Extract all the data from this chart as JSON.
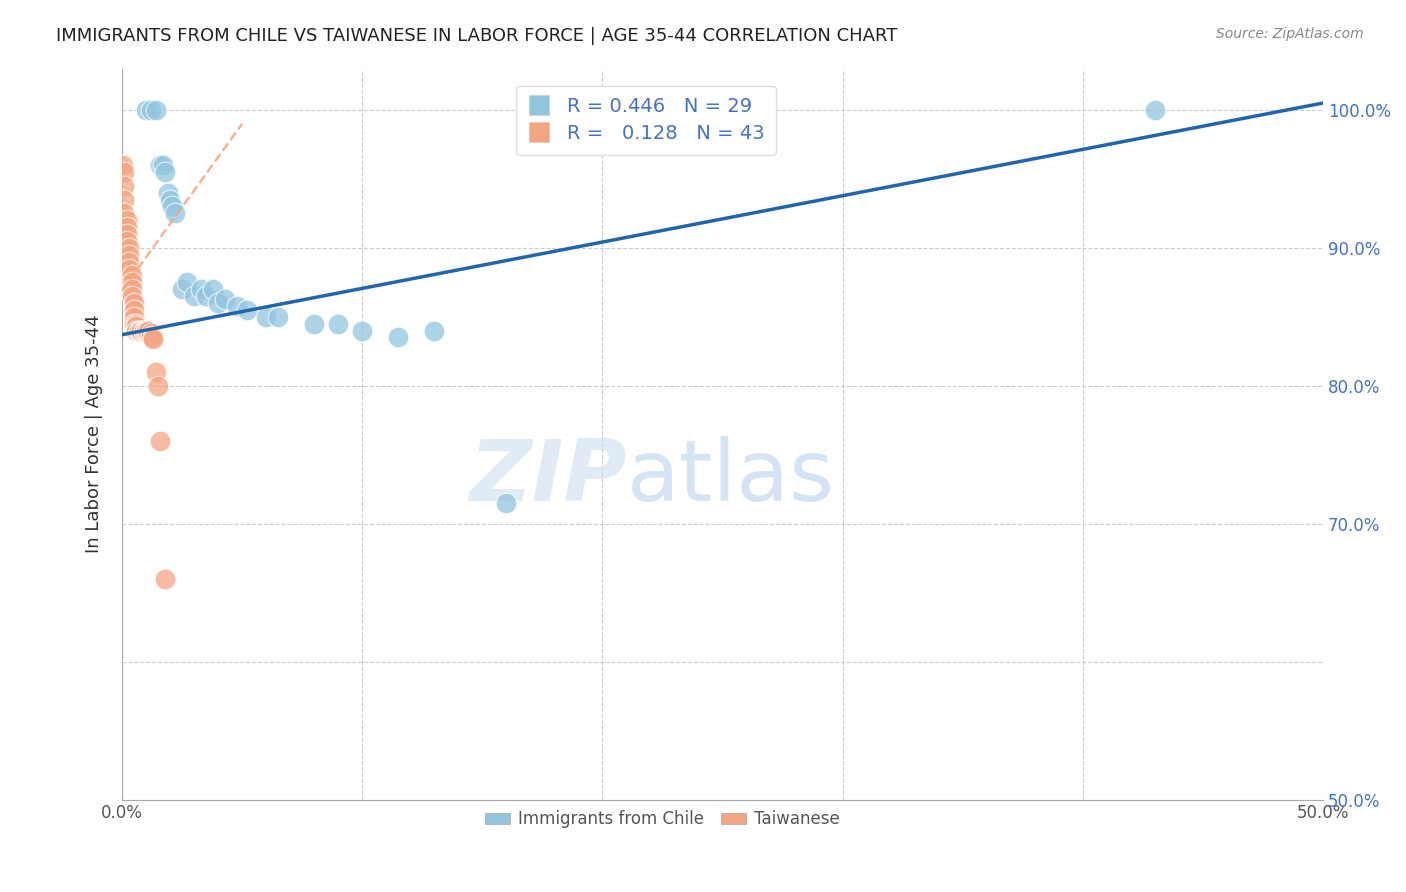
{
  "title": "IMMIGRANTS FROM CHILE VS TAIWANESE IN LABOR FORCE | AGE 35-44 CORRELATION CHART",
  "source": "Source: ZipAtlas.com",
  "xlabel": "",
  "ylabel": "In Labor Force | Age 35-44",
  "xlim": [
    0.0,
    0.5
  ],
  "ylim": [
    0.5,
    1.03
  ],
  "xticks": [
    0.0,
    0.1,
    0.2,
    0.3,
    0.4,
    0.5
  ],
  "xticklabels": [
    "0.0%",
    "",
    "",
    "",
    "",
    "50.0%"
  ],
  "yticks": [
    0.5,
    0.6,
    0.7,
    0.8,
    0.9,
    1.0
  ],
  "yticklabels": [
    "50.0%",
    "",
    "70.0%",
    "80.0%",
    "90.0%",
    "100.0%"
  ],
  "blue_R": 0.446,
  "blue_N": 29,
  "pink_R": 0.128,
  "pink_N": 43,
  "blue_color": "#92c5de",
  "pink_color": "#f4a582",
  "blue_line_color": "#2166ac",
  "pink_line_color": "#f4a582",
  "watermark_zip": "ZIP",
  "watermark_atlas": "atlas",
  "blue_x": [
    0.01,
    0.012,
    0.014,
    0.016,
    0.017,
    0.018,
    0.019,
    0.02,
    0.021,
    0.022,
    0.025,
    0.027,
    0.03,
    0.033,
    0.035,
    0.038,
    0.04,
    0.043,
    0.048,
    0.052,
    0.06,
    0.065,
    0.08,
    0.09,
    0.1,
    0.115,
    0.13,
    0.16,
    0.43
  ],
  "blue_y": [
    1.0,
    1.0,
    1.0,
    0.96,
    0.96,
    0.955,
    0.94,
    0.935,
    0.93,
    0.925,
    0.87,
    0.875,
    0.865,
    0.87,
    0.865,
    0.87,
    0.86,
    0.863,
    0.858,
    0.855,
    0.85,
    0.85,
    0.845,
    0.845,
    0.84,
    0.835,
    0.84,
    0.715,
    1.0
  ],
  "pink_x": [
    0.0005,
    0.001,
    0.001,
    0.001,
    0.001,
    0.002,
    0.002,
    0.002,
    0.002,
    0.003,
    0.003,
    0.003,
    0.003,
    0.004,
    0.004,
    0.004,
    0.004,
    0.005,
    0.005,
    0.005,
    0.005,
    0.006,
    0.006,
    0.006,
    0.007,
    0.007,
    0.007,
    0.008,
    0.008,
    0.009,
    0.009,
    0.01,
    0.01,
    0.011,
    0.011,
    0.012,
    0.012,
    0.013,
    0.013,
    0.014,
    0.015,
    0.016,
    0.018
  ],
  "pink_y": [
    0.96,
    0.955,
    0.945,
    0.935,
    0.925,
    0.92,
    0.915,
    0.91,
    0.905,
    0.9,
    0.895,
    0.89,
    0.885,
    0.88,
    0.875,
    0.87,
    0.865,
    0.86,
    0.855,
    0.85,
    0.845,
    0.845,
    0.843,
    0.84,
    0.84,
    0.84,
    0.84,
    0.84,
    0.84,
    0.84,
    0.84,
    0.84,
    0.84,
    0.84,
    0.84,
    0.838,
    0.836,
    0.835,
    0.834,
    0.81,
    0.8,
    0.76,
    0.66
  ],
  "blue_line_x0": 0.0,
  "blue_line_x1": 0.5,
  "blue_line_y0": 0.837,
  "blue_line_y1": 1.005,
  "pink_line_x0": 0.0,
  "pink_line_x1": 0.05,
  "pink_line_y0": 0.869,
  "pink_line_y1": 0.99
}
